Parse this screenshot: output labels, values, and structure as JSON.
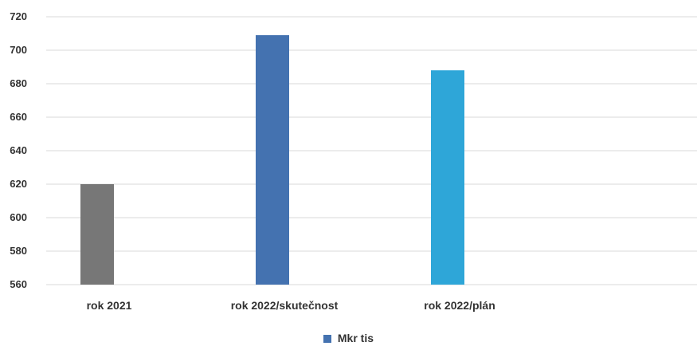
{
  "chart_data": {
    "type": "bar",
    "categories": [
      "rok 2021",
      "rok 2022/skutečnost",
      "rok 2022/plán"
    ],
    "series": [
      {
        "name": "Mkr tis",
        "values": [
          620,
          709,
          688
        ]
      }
    ],
    "bar_colors": [
      "#777777",
      "#4472B0",
      "#2EA6D8"
    ],
    "legend_color": "#4472B0",
    "ylim": [
      560,
      720
    ],
    "yticks": [
      720,
      700,
      680,
      660,
      640,
      620,
      600,
      580,
      560
    ],
    "grid": true,
    "legend_position": "bottom"
  }
}
